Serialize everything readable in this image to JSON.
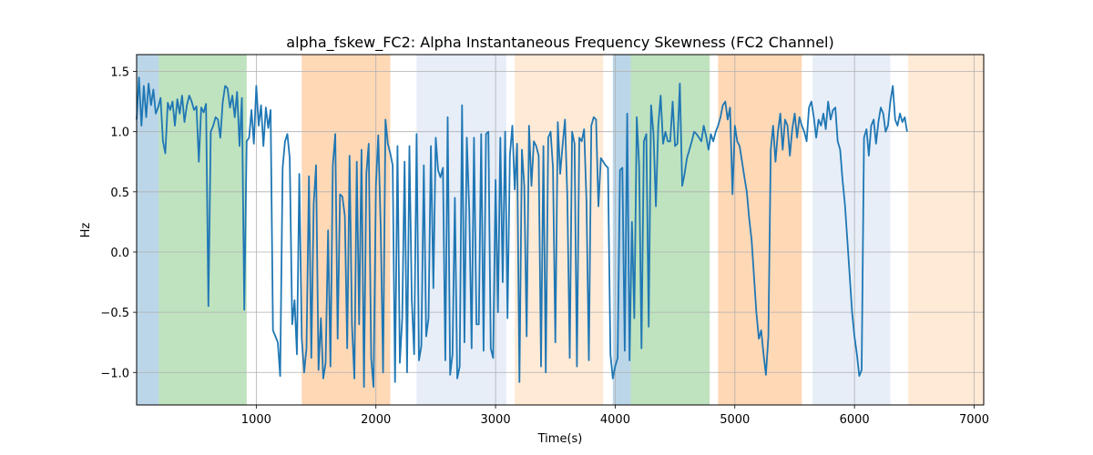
{
  "chart_data": {
    "type": "line",
    "title": "alpha_fskew_FC2: Alpha Instantaneous Frequency Skewness (FC2 Channel)",
    "xlabel": "Time(s)",
    "ylabel": "Hz",
    "xlim": [
      0,
      7080
    ],
    "ylim": [
      -1.27,
      1.64
    ],
    "xticks": [
      1000,
      2000,
      3000,
      4000,
      5000,
      6000,
      7000
    ],
    "yticks": [
      -1.0,
      -0.5,
      0.0,
      0.5,
      1.0,
      1.5
    ],
    "grid": true,
    "line_color": "#1f77b4",
    "bands": [
      {
        "start": 0,
        "end": 185,
        "color": "#1f77b4",
        "opacity": 0.3
      },
      {
        "start": 185,
        "end": 920,
        "color": "#2ca02c",
        "opacity": 0.3
      },
      {
        "start": 1380,
        "end": 2120,
        "color": "#ff7f0e",
        "opacity": 0.3
      },
      {
        "start": 2340,
        "end": 3090,
        "color": "#aec7e8",
        "opacity": 0.3
      },
      {
        "start": 3160,
        "end": 3900,
        "color": "#ffbb78",
        "opacity": 0.3
      },
      {
        "start": 3980,
        "end": 4130,
        "color": "#1f77b4",
        "opacity": 0.3
      },
      {
        "start": 4130,
        "end": 4790,
        "color": "#2ca02c",
        "opacity": 0.3
      },
      {
        "start": 4860,
        "end": 5560,
        "color": "#ff7f0e",
        "opacity": 0.3
      },
      {
        "start": 5650,
        "end": 6300,
        "color": "#aec7e8",
        "opacity": 0.3
      },
      {
        "start": 6450,
        "end": 7080,
        "color": "#ffbb78",
        "opacity": 0.3
      }
    ],
    "x_start": 0,
    "x_step": 20,
    "values": [
      1.1,
      1.45,
      1.05,
      1.38,
      1.12,
      1.4,
      1.22,
      1.35,
      1.15,
      1.2,
      1.28,
      0.92,
      0.82,
      1.24,
      1.18,
      1.25,
      1.05,
      1.27,
      1.15,
      1.3,
      1.08,
      1.22,
      1.3,
      1.25,
      1.18,
      1.21,
      0.75,
      1.2,
      1.16,
      1.23,
      -0.45,
      1.0,
      1.05,
      1.12,
      1.1,
      0.95,
      1.25,
      1.38,
      1.36,
      1.2,
      1.3,
      1.12,
      1.33,
      0.88,
      1.28,
      -0.48,
      0.92,
      0.95,
      1.18,
      0.9,
      1.38,
      1.05,
      1.22,
      0.88,
      1.2,
      1.03,
      1.18,
      -0.65,
      -0.7,
      -0.75,
      -1.03,
      0.7,
      0.92,
      0.98,
      0.78,
      -0.6,
      -0.4,
      -0.85,
      0.65,
      -0.72,
      -1.0,
      -0.8,
      0.63,
      -0.88,
      0.4,
      0.72,
      -0.98,
      -0.55,
      -1.05,
      -0.92,
      0.18,
      -0.95,
      0.72,
      0.98,
      -0.72,
      0.48,
      0.46,
      0.3,
      -0.8,
      0.8,
      -0.6,
      -1.05,
      0.75,
      -0.6,
      0.85,
      -1.12,
      0.65,
      0.9,
      -0.88,
      -1.12,
      0.55,
      0.97,
      0.2,
      -1.0,
      1.1,
      0.9,
      0.82,
      0.72,
      -1.08,
      0.88,
      -0.92,
      -0.55,
      0.75,
      -1.0,
      0.88,
      -0.4,
      -0.85,
      0.98,
      -0.9,
      -0.78,
      0.72,
      -0.7,
      -0.55,
      0.88,
      -0.3,
      0.95,
      0.68,
      0.62,
      0.7,
      -0.9,
      1.12,
      -1.02,
      -0.85,
      0.45,
      -1.05,
      -0.95,
      1.22,
      -0.75,
      0.95,
      0.35,
      -0.8,
      0.95,
      -0.6,
      -0.6,
      0.98,
      -0.82,
      0.98,
      1.0,
      -0.8,
      -0.88,
      0.6,
      -0.5,
      0.95,
      -0.25,
      1.0,
      -0.55,
      0.8,
      1.05,
      0.52,
      0.9,
      -1.08,
      0.85,
      0.55,
      -0.7,
      1.05,
      0.55,
      0.92,
      0.88,
      0.8,
      -0.95,
      0.88,
      -1.0,
      0.95,
      1.0,
      0.7,
      -0.75,
      1.08,
      0.65,
      0.88,
      1.1,
      0.45,
      -0.88,
      1.0,
      0.9,
      -0.95,
      0.95,
      0.92,
      1.02,
      0.42,
      -0.9,
      1.05,
      1.12,
      1.1,
      0.38,
      0.78,
      0.75,
      0.72,
      0.7,
      -0.85,
      -1.05,
      -0.95,
      -0.88,
      0.68,
      0.7,
      -0.82,
      1.15,
      -0.9,
      0.25,
      -0.55,
      1.12,
      0.72,
      -0.8,
      0.92,
      0.98,
      -0.62,
      1.22,
      0.98,
      0.38,
      1.05,
      1.3,
      0.9,
      1.0,
      0.92,
      0.92,
      1.25,
      0.88,
      0.9,
      1.4,
      0.55,
      0.65,
      0.78,
      0.85,
      0.92,
      1.0,
      0.98,
      0.95,
      0.92,
      1.05,
      0.96,
      0.85,
      0.98,
      0.92,
      1.0,
      1.05,
      1.12,
      1.22,
      1.25,
      1.1,
      1.2,
      0.48,
      1.05,
      0.92,
      0.88,
      0.75,
      0.62,
      0.5,
      0.28,
      0.1,
      -0.2,
      -0.5,
      -0.72,
      -0.65,
      -0.85,
      -1.02,
      -0.7,
      0.85,
      1.05,
      0.75,
      1.0,
      1.15,
      0.85,
      1.1,
      1.05,
      0.8,
      1.02,
      1.15,
      0.95,
      1.12,
      1.05,
      1.0,
      0.92,
      1.2,
      1.25,
      1.12,
      0.95,
      1.1,
      1.05,
      1.15,
      1.02,
      1.25,
      1.1,
      1.18,
      1.2,
      0.92,
      0.85,
      0.6,
      0.4,
      0.1,
      -0.2,
      -0.5,
      -0.7,
      -0.85,
      -1.03,
      -0.98,
      0.95,
      1.02,
      0.8,
      1.05,
      1.1,
      0.9,
      1.08,
      1.2,
      1.15,
      1.0,
      1.05,
      1.25,
      1.38,
      1.1,
      1.05,
      1.15,
      1.08,
      1.12,
      1.0
    ]
  }
}
